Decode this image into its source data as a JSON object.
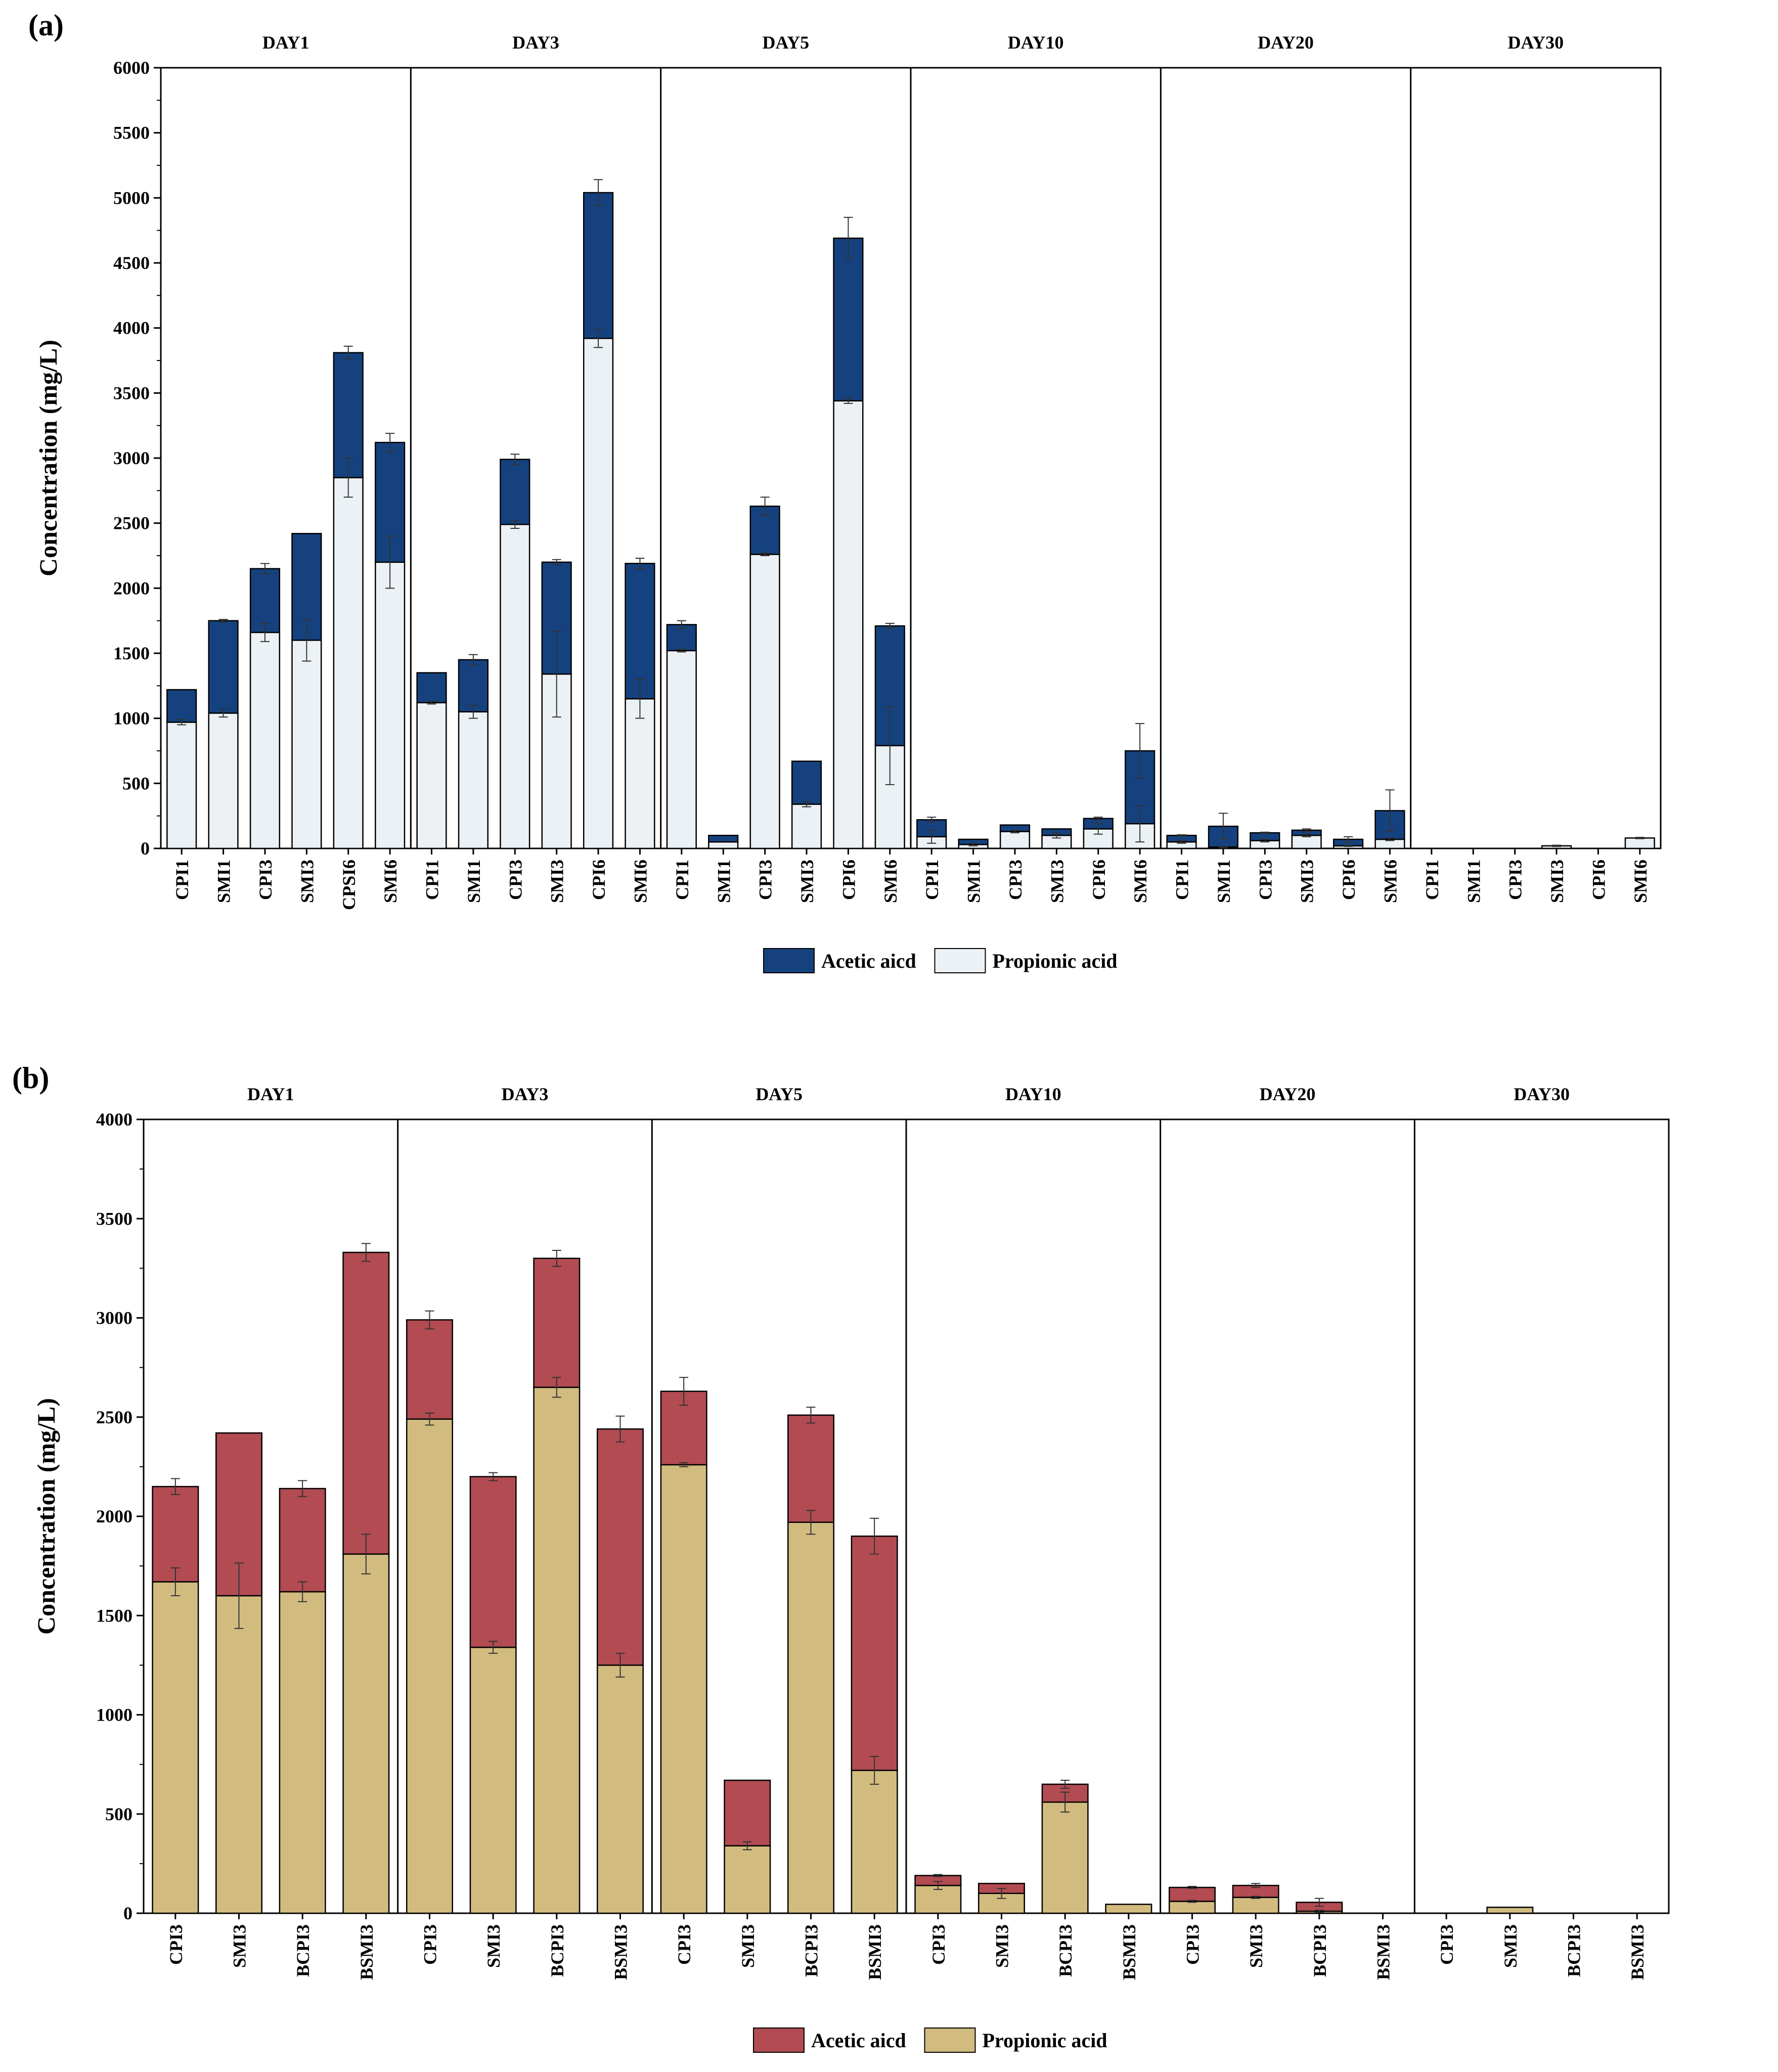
{
  "chart_data": [
    {
      "panel_label": "(a)",
      "type": "bar",
      "stacked": true,
      "ylabel": "Concentration (mg/L)",
      "ylim": [
        0,
        6000
      ],
      "yticks": [
        0,
        500,
        1000,
        1500,
        2000,
        2500,
        3000,
        3500,
        4000,
        4500,
        5000,
        5500,
        6000
      ],
      "groups": [
        {
          "label": "DAY1",
          "categories": [
            "CPI1",
            "SMI1",
            "CPI3",
            "SMI3",
            "CPSI6",
            "SMI6"
          ]
        },
        {
          "label": "DAY3",
          "categories": [
            "CPI1",
            "SMI1",
            "CPI3",
            "SMI3",
            "CPI6",
            "SMI6"
          ]
        },
        {
          "label": "DAY5",
          "categories": [
            "CPI1",
            "SMI1",
            "CPI3",
            "SMI3",
            "CPI6",
            "SMI6"
          ]
        },
        {
          "label": "DAY10",
          "categories": [
            "CPI1",
            "SMI1",
            "CPI3",
            "SMI3",
            "CPI6",
            "SMI6"
          ]
        },
        {
          "label": "DAY20",
          "categories": [
            "CPI1",
            "SMI1",
            "CPI3",
            "SMI3",
            "CPI6",
            "SMI6"
          ]
        },
        {
          "label": "DAY30",
          "categories": [
            "CPI1",
            "SMI1",
            "CPI3",
            "SMI3",
            "CPI6",
            "SMI6"
          ]
        }
      ],
      "series": [
        {
          "name": "Propionic acid",
          "color": "#ebf1f4",
          "values": [
            970,
            1040,
            1660,
            1600,
            2850,
            2200,
            1120,
            1050,
            2490,
            1340,
            3920,
            1150,
            1520,
            50,
            2260,
            340,
            3440,
            790,
            90,
            30,
            130,
            100,
            150,
            190,
            50,
            10,
            60,
            100,
            20,
            70,
            0,
            0,
            0,
            20,
            0,
            80
          ],
          "errors": [
            20,
            30,
            70,
            160,
            150,
            200,
            10,
            50,
            30,
            330,
            70,
            150,
            10,
            0,
            10,
            20,
            20,
            300,
            50,
            10,
            10,
            20,
            40,
            140,
            10,
            5,
            10,
            10,
            5,
            10,
            0,
            0,
            0,
            5,
            0,
            5
          ]
        },
        {
          "name": "Acetic aicd",
          "color": "#15427f",
          "values": [
            250,
            710,
            490,
            820,
            960,
            920,
            230,
            400,
            500,
            860,
            1120,
            1040,
            200,
            50,
            370,
            330,
            1250,
            920,
            130,
            40,
            50,
            50,
            80,
            560,
            50,
            160,
            60,
            40,
            50,
            220,
            0,
            0,
            0,
            0,
            0,
            0
          ],
          "errors": [
            0,
            10,
            40,
            0,
            50,
            70,
            0,
            40,
            40,
            20,
            100,
            40,
            30,
            0,
            70,
            0,
            160,
            20,
            20,
            0,
            0,
            0,
            10,
            210,
            5,
            100,
            5,
            10,
            20,
            160,
            0,
            0,
            0,
            0,
            0,
            0
          ]
        }
      ],
      "legend": {
        "placement": "bottom-center",
        "order": [
          "Acetic aicd",
          "Propionic acid"
        ]
      },
      "grid": false
    },
    {
      "panel_label": "(b)",
      "type": "bar",
      "stacked": true,
      "ylabel": "Concentration (mg/L)",
      "ylim": [
        0,
        4000
      ],
      "yticks": [
        0,
        500,
        1000,
        1500,
        2000,
        2500,
        3000,
        3500,
        4000
      ],
      "groups": [
        {
          "label": "DAY1",
          "categories": [
            "CPI3",
            "SMI3",
            "BCPI3",
            "BSMI3"
          ]
        },
        {
          "label": "DAY3",
          "categories": [
            "CPI3",
            "SMI3",
            "BCPI3",
            "BSMI3"
          ]
        },
        {
          "label": "DAY5",
          "categories": [
            "CPI3",
            "SMI3",
            "BCPI3",
            "BSMI3"
          ]
        },
        {
          "label": "DAY10",
          "categories": [
            "CPI3",
            "SMI3",
            "BCPI3",
            "BSMI3"
          ]
        },
        {
          "label": "DAY20",
          "categories": [
            "CPI3",
            "SMI3",
            "BCPI3",
            "BSMI3"
          ]
        },
        {
          "label": "DAY30",
          "categories": [
            "CPI3",
            "SMI3",
            "BCPI3",
            "BSMI3"
          ]
        }
      ],
      "series": [
        {
          "name": "Propionic acid",
          "color": "#d1bb7f",
          "values": [
            1670,
            1600,
            1620,
            1810,
            2490,
            1340,
            2650,
            1250,
            2260,
            340,
            1970,
            720,
            140,
            100,
            560,
            45,
            60,
            80,
            10,
            0,
            0,
            30,
            0,
            0
          ],
          "errors": [
            70,
            165,
            50,
            100,
            30,
            30,
            50,
            60,
            10,
            20,
            60,
            70,
            20,
            25,
            50,
            0,
            5,
            5,
            5,
            0,
            0,
            0,
            0,
            0
          ]
        },
        {
          "name": "Acetic aicd",
          "color": "#b24b52",
          "values": [
            480,
            820,
            520,
            1520,
            500,
            860,
            650,
            1190,
            370,
            330,
            540,
            1180,
            50,
            50,
            90,
            0,
            70,
            60,
            45,
            0,
            0,
            0,
            0,
            0
          ],
          "errors": [
            40,
            0,
            40,
            45,
            45,
            20,
            40,
            65,
            70,
            0,
            40,
            90,
            5,
            0,
            20,
            0,
            5,
            10,
            20,
            0,
            0,
            0,
            0,
            0
          ]
        }
      ],
      "legend": {
        "placement": "bottom-center",
        "order": [
          "Acetic aicd",
          "Propionic acid"
        ]
      },
      "grid": false
    }
  ]
}
